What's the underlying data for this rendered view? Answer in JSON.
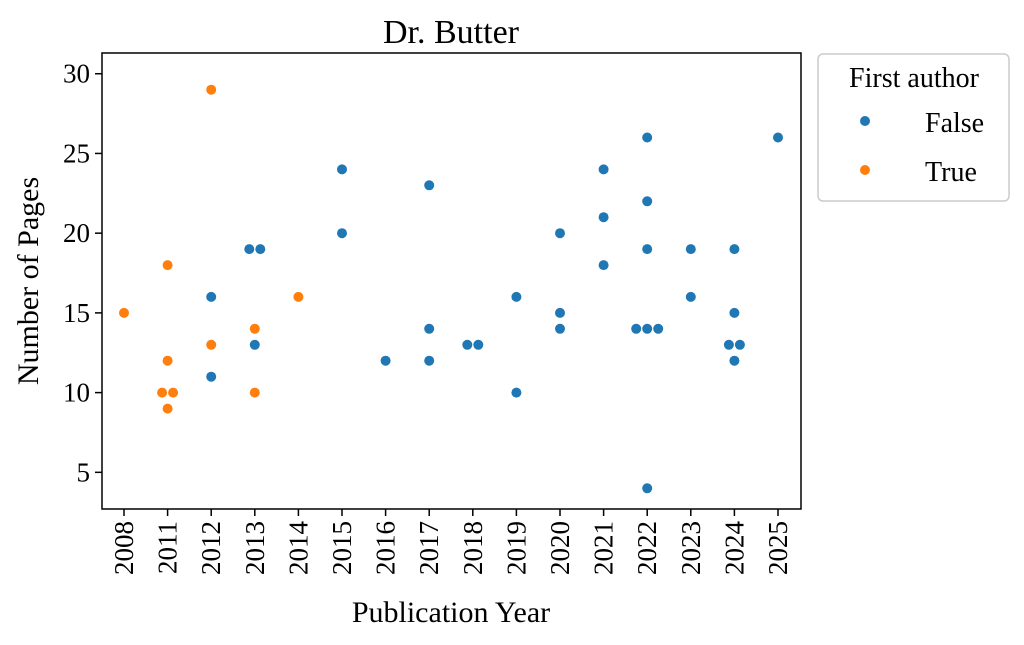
{
  "chart_data": {
    "type": "scatter",
    "title": "Dr. Butter",
    "xlabel": "Publication Year",
    "ylabel": "Number of Pages",
    "categories": [
      "2008",
      "2011",
      "2012",
      "2013",
      "2014",
      "2015",
      "2016",
      "2017",
      "2018",
      "2019",
      "2020",
      "2021",
      "2022",
      "2023",
      "2024",
      "2025"
    ],
    "yticks": [
      "5",
      "10",
      "15",
      "20",
      "25",
      "30"
    ],
    "yticks_values": [
      5,
      10,
      15,
      20,
      25,
      30
    ],
    "ylim": [
      2.7,
      31.3
    ],
    "grid": false,
    "legend": {
      "title": "First author",
      "placement": "outside-right-top",
      "entries": [
        "False",
        "True"
      ]
    },
    "colors": {
      "False": "#1f77b4",
      "True": "#ff7f0e"
    },
    "points": [
      {
        "x": "2008",
        "y": 15,
        "first_author": "True"
      },
      {
        "x": "2011",
        "y": 10,
        "first_author": "True"
      },
      {
        "x": "2011",
        "y": 10,
        "first_author": "True"
      },
      {
        "x": "2011",
        "y": 18,
        "first_author": "True"
      },
      {
        "x": "2011",
        "y": 12,
        "first_author": "True"
      },
      {
        "x": "2011",
        "y": 9,
        "first_author": "True"
      },
      {
        "x": "2012",
        "y": 29,
        "first_author": "True"
      },
      {
        "x": "2012",
        "y": 16,
        "first_author": "False"
      },
      {
        "x": "2012",
        "y": 13,
        "first_author": "True"
      },
      {
        "x": "2012",
        "y": 11,
        "first_author": "False"
      },
      {
        "x": "2013",
        "y": 19,
        "first_author": "False"
      },
      {
        "x": "2013",
        "y": 19,
        "first_author": "False"
      },
      {
        "x": "2013",
        "y": 14,
        "first_author": "True"
      },
      {
        "x": "2013",
        "y": 13,
        "first_author": "False"
      },
      {
        "x": "2013",
        "y": 10,
        "first_author": "True"
      },
      {
        "x": "2014",
        "y": 16,
        "first_author": "True"
      },
      {
        "x": "2015",
        "y": 24,
        "first_author": "False"
      },
      {
        "x": "2015",
        "y": 20,
        "first_author": "False"
      },
      {
        "x": "2016",
        "y": 12,
        "first_author": "False"
      },
      {
        "x": "2017",
        "y": 23,
        "first_author": "False"
      },
      {
        "x": "2017",
        "y": 14,
        "first_author": "False"
      },
      {
        "x": "2017",
        "y": 12,
        "first_author": "False"
      },
      {
        "x": "2018",
        "y": 13,
        "first_author": "False"
      },
      {
        "x": "2018",
        "y": 13,
        "first_author": "False"
      },
      {
        "x": "2019",
        "y": 16,
        "first_author": "False"
      },
      {
        "x": "2019",
        "y": 10,
        "first_author": "False"
      },
      {
        "x": "2020",
        "y": 20,
        "first_author": "False"
      },
      {
        "x": "2020",
        "y": 15,
        "first_author": "False"
      },
      {
        "x": "2020",
        "y": 14,
        "first_author": "False"
      },
      {
        "x": "2021",
        "y": 24,
        "first_author": "False"
      },
      {
        "x": "2021",
        "y": 21,
        "first_author": "False"
      },
      {
        "x": "2021",
        "y": 18,
        "first_author": "False"
      },
      {
        "x": "2022",
        "y": 26,
        "first_author": "False"
      },
      {
        "x": "2022",
        "y": 22,
        "first_author": "False"
      },
      {
        "x": "2022",
        "y": 19,
        "first_author": "False"
      },
      {
        "x": "2022",
        "y": 14,
        "first_author": "False"
      },
      {
        "x": "2022",
        "y": 14,
        "first_author": "False"
      },
      {
        "x": "2022",
        "y": 14,
        "first_author": "False"
      },
      {
        "x": "2022",
        "y": 4,
        "first_author": "False"
      },
      {
        "x": "2023",
        "y": 19,
        "first_author": "False"
      },
      {
        "x": "2023",
        "y": 16,
        "first_author": "False"
      },
      {
        "x": "2024",
        "y": 19,
        "first_author": "False"
      },
      {
        "x": "2024",
        "y": 15,
        "first_author": "False"
      },
      {
        "x": "2024",
        "y": 13,
        "first_author": "False"
      },
      {
        "x": "2024",
        "y": 13,
        "first_author": "False"
      },
      {
        "x": "2024",
        "y": 12,
        "first_author": "False"
      },
      {
        "x": "2025",
        "y": 26,
        "first_author": "False"
      }
    ]
  }
}
